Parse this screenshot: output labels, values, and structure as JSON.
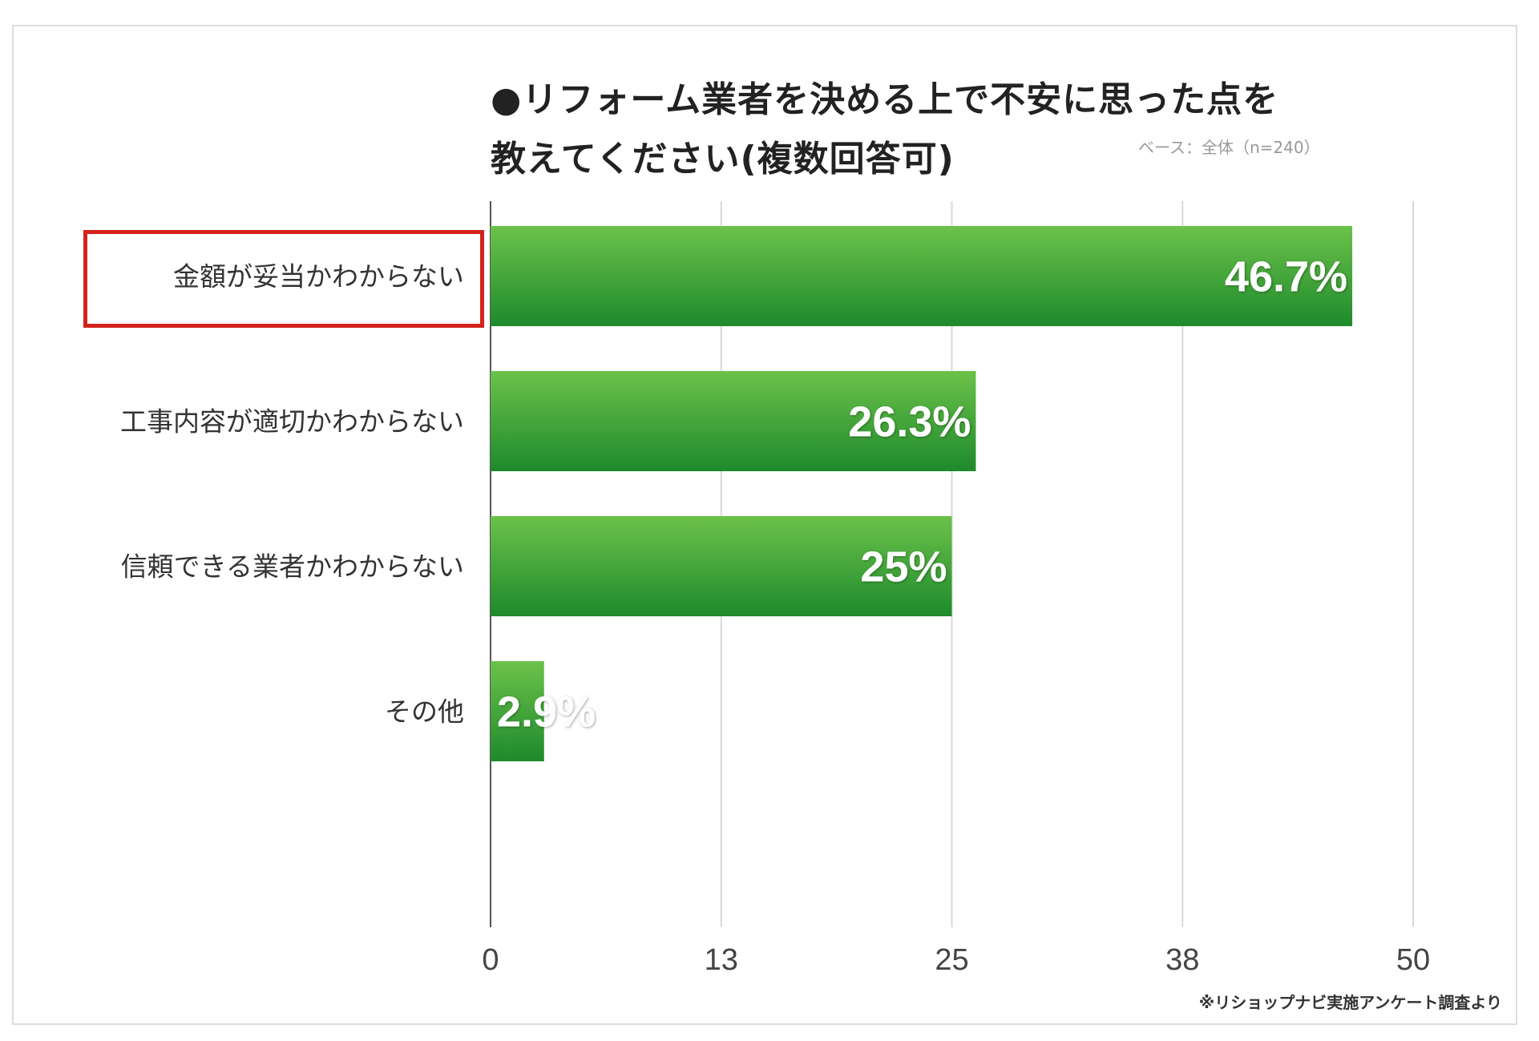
{
  "chart_data": {
    "type": "bar",
    "orientation": "horizontal",
    "title": "●リフォーム業者を決める上で不安に思った点を教えてください(複数回答可)",
    "title_lines": [
      "●リフォーム業者を決める上で不安に思った点を",
      "教えてください(複数回答可)"
    ],
    "subtitle": "ベース：全体（n=240）",
    "footnote": "※リショップナビ実施アンケート調査より",
    "categories": [
      "金額が妥当かわからない",
      "工事内容が適切かわからない",
      "信頼できる業者かわからない",
      "その他"
    ],
    "values": [
      46.7,
      26.3,
      25,
      2.9
    ],
    "data_labels": [
      "46.7%",
      "26.3%",
      "25%",
      "2.9%"
    ],
    "highlighted_category": "金額が妥当かわからない",
    "xlim": [
      0,
      50
    ],
    "x_ticks": [
      0,
      12.5,
      25,
      37.5,
      50
    ],
    "x_tick_labels": [
      "0",
      "13",
      "25",
      "38",
      "50"
    ],
    "grid": true,
    "xlabel": "",
    "ylabel": "",
    "colors": {
      "bar_top": "#6cc24a",
      "bar_bottom": "#1e8a2c",
      "highlight": "#d2231c",
      "grid": "#d8d8d8"
    }
  }
}
